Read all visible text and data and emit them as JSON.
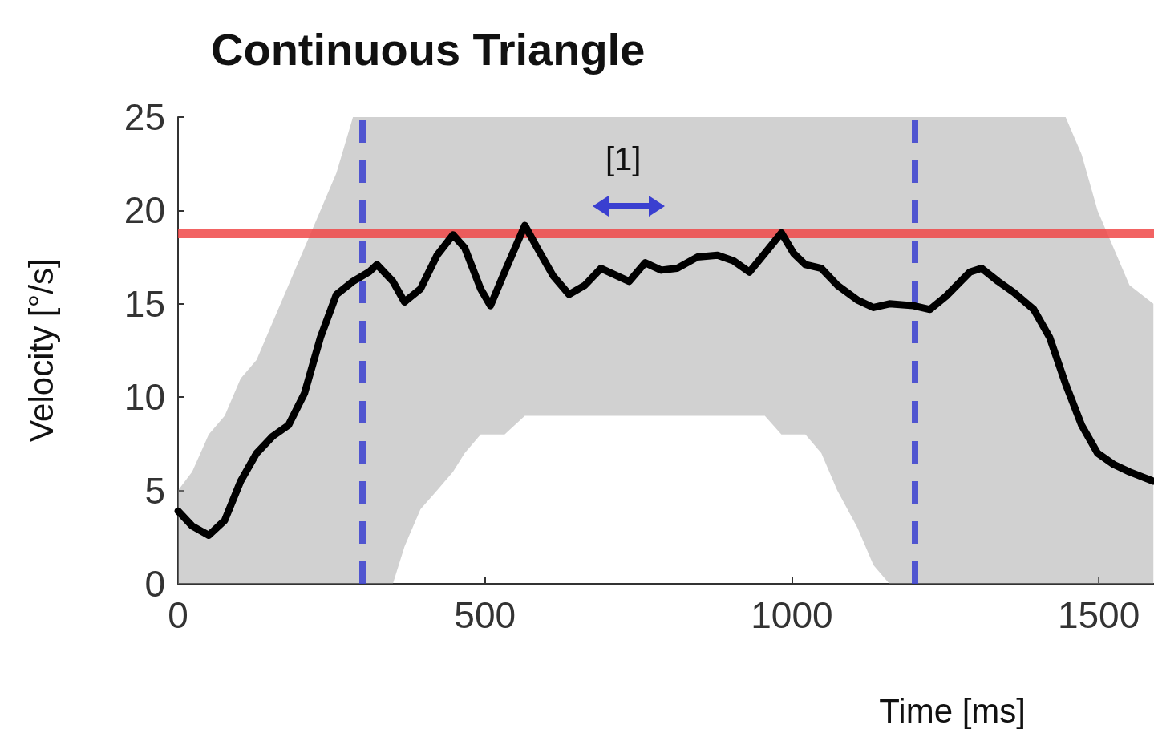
{
  "chart_data": {
    "type": "line",
    "title": "Continuous Triangle",
    "xlabel": "Time [ms]",
    "ylabel": "Velocity [°/s]",
    "xlim": [
      0,
      1590
    ],
    "ylim": [
      0,
      25
    ],
    "xticks": [
      0,
      500,
      1000,
      1500
    ],
    "yticks": [
      0,
      5,
      10,
      15,
      20,
      25
    ],
    "grid": false,
    "line_style": "solid",
    "series": [
      {
        "color": "#000000",
        "x": [
          0,
          23,
          50,
          76,
          102,
          128,
          154,
          180,
          206,
          232,
          258,
          285,
          311,
          324,
          350,
          369,
          395,
          422,
          448,
          467,
          493,
          509,
          532,
          565,
          585,
          611,
          637,
          663,
          689,
          715,
          735,
          761,
          787,
          813,
          846,
          879,
          905,
          931,
          956,
          983,
          1003,
          1022,
          1048,
          1074,
          1107,
          1133,
          1159,
          1198,
          1225,
          1251,
          1290,
          1309,
          1336,
          1362,
          1394,
          1420,
          1446,
          1472,
          1498,
          1524,
          1550,
          1589
        ],
        "values": [
          3.9,
          3.1,
          2.6,
          3.4,
          5.5,
          7.0,
          7.9,
          8.5,
          10.2,
          13.2,
          15.5,
          16.2,
          16.7,
          17.1,
          16.2,
          15.1,
          15.8,
          17.6,
          18.7,
          18.0,
          15.8,
          14.9,
          16.7,
          19.2,
          18.0,
          16.5,
          15.5,
          16.0,
          16.9,
          16.5,
          16.2,
          17.2,
          16.8,
          16.9,
          17.5,
          17.6,
          17.3,
          16.7,
          17.7,
          18.8,
          17.7,
          17.1,
          16.9,
          16.0,
          15.2,
          14.8,
          15.0,
          14.9,
          14.7,
          15.4,
          16.7,
          16.9,
          16.2,
          15.6,
          14.7,
          13.2,
          10.7,
          8.5,
          7.0,
          6.4,
          6.0,
          5.5
        ],
        "lower": [
          0,
          0,
          0,
          0,
          0,
          0,
          0,
          0,
          0,
          0,
          0,
          0,
          0,
          0,
          0,
          2,
          4,
          5,
          6,
          7,
          8,
          8,
          8,
          9,
          9,
          9,
          9,
          9,
          9,
          9,
          9,
          9,
          9,
          9,
          9,
          9,
          9,
          9,
          9,
          8,
          8,
          8,
          7,
          5,
          3,
          1,
          0,
          0,
          0,
          0,
          0,
          0,
          0,
          0,
          0,
          0,
          0,
          0,
          0,
          0,
          0,
          0
        ],
        "upper": [
          5,
          6,
          8,
          9,
          11,
          12,
          14,
          16,
          18,
          20,
          22,
          25,
          25,
          25,
          25,
          25,
          25,
          25,
          25,
          25,
          25,
          25,
          25,
          25,
          25,
          25,
          25,
          25,
          25,
          25,
          25,
          25,
          25,
          25,
          25,
          25,
          25,
          25,
          25,
          25,
          25,
          25,
          25,
          25,
          25,
          25,
          25,
          25,
          25,
          25,
          25,
          25,
          25,
          25,
          25,
          25,
          25,
          23,
          20,
          18,
          16,
          15
        ]
      }
    ],
    "ref_lines": [
      {
        "axis": "y",
        "value": 18.8,
        "color": "#f04848",
        "line_style": "solid"
      },
      {
        "axis": "x",
        "value": 300,
        "color": "#3a3fd0",
        "line_style": "dashed"
      },
      {
        "axis": "x",
        "value": 1200,
        "color": "#3a3fd0",
        "line_style": "dashed"
      }
    ],
    "annotations": [
      "[1]"
    ]
  }
}
